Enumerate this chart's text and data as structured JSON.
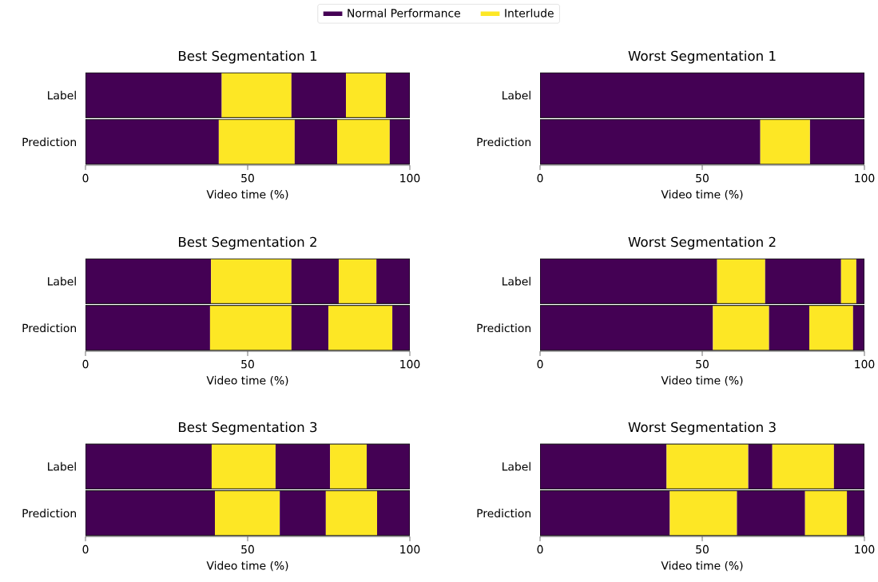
{
  "chart_data": [
    {
      "type": "bar",
      "orientation": "horizontal",
      "stacked": true,
      "title": "Best Segmentation 1",
      "xlabel": "Video time (%)",
      "categories": [
        "Label",
        "Prediction"
      ],
      "xlim": [
        0,
        100
      ],
      "xticks": [
        0,
        50,
        100
      ],
      "legend": "top",
      "series": [
        {
          "name": "Normal Performance",
          "color": "#440154",
          "values": [
            42,
            41.1
          ]
        },
        {
          "name": "Interlude",
          "color": "#fde725",
          "values": [
            21.5,
            23.4
          ]
        },
        {
          "color": "#440154",
          "values": [
            16.8,
            13.1
          ]
        },
        {
          "color": "#fde725",
          "values": [
            12.3,
            16.2
          ]
        },
        {
          "color": "#440154",
          "values": [
            7.4,
            6.2
          ]
        }
      ]
    },
    {
      "type": "bar",
      "orientation": "horizontal",
      "stacked": true,
      "title": "Worst Segmentation 1",
      "xlabel": "Video time (%)",
      "categories": [
        "Label",
        "Prediction"
      ],
      "xlim": [
        0,
        100
      ],
      "xticks": [
        0,
        50,
        100
      ],
      "series": [
        {
          "color": "#440154",
          "values": [
            100,
            67.9
          ]
        },
        {
          "color": "#fde725",
          "values": [
            null,
            15.3
          ]
        },
        {
          "color": "#440154",
          "values": [
            null,
            16.8
          ]
        }
      ]
    },
    {
      "type": "bar",
      "orientation": "horizontal",
      "stacked": true,
      "title": "Best Segmentation 2",
      "xlabel": "Video time (%)",
      "categories": [
        "Label",
        "Prediction"
      ],
      "xlim": [
        0,
        100
      ],
      "xticks": [
        0,
        50,
        100
      ],
      "series": [
        {
          "color": "#440154",
          "values": [
            38.7,
            38.4
          ]
        },
        {
          "color": "#fde725",
          "values": [
            24.8,
            25.1
          ]
        },
        {
          "color": "#440154",
          "values": [
            14.6,
            11.4
          ]
        },
        {
          "color": "#fde725",
          "values": [
            11.6,
            19.7
          ]
        },
        {
          "color": "#440154",
          "values": [
            10.3,
            5.4
          ]
        }
      ]
    },
    {
      "type": "bar",
      "orientation": "horizontal",
      "stacked": true,
      "title": "Worst Segmentation 2",
      "xlabel": "Video time (%)",
      "categories": [
        "Label",
        "Prediction"
      ],
      "xlim": [
        0,
        100
      ],
      "xticks": [
        0,
        50,
        100
      ],
      "series": [
        {
          "color": "#440154",
          "values": [
            54.6,
            53.3
          ]
        },
        {
          "color": "#fde725",
          "values": [
            14.8,
            17.3
          ]
        },
        {
          "color": "#440154",
          "values": [
            23.4,
            12.4
          ]
        },
        {
          "color": "#fde725",
          "values": [
            4.7,
            13.5
          ]
        },
        {
          "color": "#440154",
          "values": [
            2.5,
            3.5
          ]
        }
      ]
    },
    {
      "type": "bar",
      "orientation": "horizontal",
      "stacked": true,
      "title": "Best Segmentation 3",
      "xlabel": "Video time (%)",
      "categories": [
        "Label",
        "Prediction"
      ],
      "xlim": [
        0,
        100
      ],
      "xticks": [
        0,
        50,
        100
      ],
      "series": [
        {
          "color": "#440154",
          "values": [
            38.9,
            39.9
          ]
        },
        {
          "color": "#fde725",
          "values": [
            19.7,
            20
          ]
        },
        {
          "color": "#440154",
          "values": [
            16.8,
            14.2
          ]
        },
        {
          "color": "#fde725",
          "values": [
            11.3,
            15.8
          ]
        },
        {
          "color": "#440154",
          "values": [
            13.3,
            10.1
          ]
        }
      ]
    },
    {
      "type": "bar",
      "orientation": "horizontal",
      "stacked": true,
      "title": "Worst Segmentation 3",
      "xlabel": "Video time (%)",
      "categories": [
        "Label",
        "Prediction"
      ],
      "xlim": [
        0,
        100
      ],
      "xticks": [
        0,
        50,
        100
      ],
      "series": [
        {
          "color": "#440154",
          "values": [
            39,
            40
          ]
        },
        {
          "color": "#fde725",
          "values": [
            25.2,
            20.7
          ]
        },
        {
          "color": "#440154",
          "values": [
            7.4,
            21
          ]
        },
        {
          "color": "#fde725",
          "values": [
            19,
            12.9
          ]
        },
        {
          "color": "#440154",
          "values": [
            9.4,
            5.4
          ]
        }
      ]
    }
  ]
}
